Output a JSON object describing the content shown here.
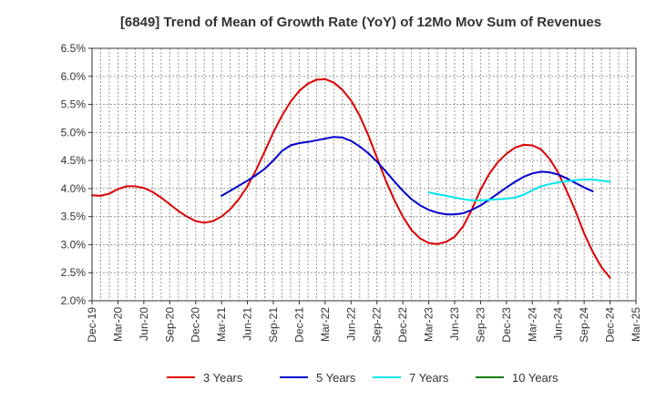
{
  "chart_data": {
    "type": "line",
    "title": "[6849]  Trend of Mean of Growth Rate (YoY) of 12Mo Mov Sum of Revenues",
    "xlabel": "",
    "ylabel": "",
    "y_tick_labels": [
      "2.0%",
      "2.5%",
      "3.0%",
      "3.5%",
      "4.0%",
      "4.5%",
      "5.0%",
      "5.5%",
      "6.0%",
      "6.5%"
    ],
    "x_tick_labels": [
      "Dec-19",
      "Mar-20",
      "Jun-20",
      "Sep-20",
      "Dec-20",
      "Mar-21",
      "Jun-21",
      "Sep-21",
      "Dec-21",
      "Mar-22",
      "Jun-22",
      "Sep-22",
      "Dec-22",
      "Mar-23",
      "Jun-23",
      "Sep-23",
      "Dec-23",
      "Mar-24",
      "Jun-24",
      "Sep-24",
      "Dec-24",
      "Mar-25"
    ],
    "x_start": "Dec-19",
    "x_num_months": 63,
    "ylim": [
      2.0,
      6.5
    ],
    "grid": true,
    "legend_position": "bottom",
    "series": [
      {
        "name": "3 Years",
        "color": "#dd0000",
        "start_month_index": 0,
        "values": [
          3.88,
          3.87,
          3.91,
          3.99,
          4.04,
          4.04,
          4.01,
          3.94,
          3.84,
          3.72,
          3.6,
          3.5,
          3.42,
          3.39,
          3.42,
          3.5,
          3.63,
          3.81,
          4.04,
          4.33,
          4.66,
          5.0,
          5.3,
          5.55,
          5.74,
          5.87,
          5.94,
          5.95,
          5.89,
          5.76,
          5.57,
          5.3,
          4.95,
          4.55,
          4.15,
          3.8,
          3.5,
          3.26,
          3.11,
          3.03,
          3.01,
          3.05,
          3.14,
          3.33,
          3.63,
          3.98,
          4.26,
          4.47,
          4.62,
          4.73,
          4.78,
          4.77,
          4.7,
          4.53,
          4.28,
          3.95,
          3.6,
          3.2,
          2.87,
          2.6,
          2.41
        ]
      },
      {
        "name": "5 Years",
        "color": "#0000cc",
        "start_month_index": 15,
        "values": [
          3.87,
          3.96,
          4.05,
          4.14,
          4.24,
          4.35,
          4.5,
          4.67,
          4.77,
          4.81,
          4.83,
          4.86,
          4.89,
          4.92,
          4.91,
          4.85,
          4.75,
          4.63,
          4.48,
          4.31,
          4.13,
          3.96,
          3.81,
          3.7,
          3.62,
          3.57,
          3.54,
          3.54,
          3.56,
          3.62,
          3.7,
          3.8,
          3.91,
          4.02,
          4.12,
          4.21,
          4.27,
          4.3,
          4.29,
          4.25,
          4.18,
          4.1,
          4.02,
          3.95
        ]
      },
      {
        "name": "7 Years",
        "color": "#00e5ee",
        "start_month_index": 39,
        "values": [
          3.93,
          3.9,
          3.87,
          3.84,
          3.81,
          3.79,
          3.79,
          3.8,
          3.81,
          3.82,
          3.84,
          3.89,
          3.97,
          4.04,
          4.08,
          4.11,
          4.13,
          4.15,
          4.16,
          4.16,
          4.14,
          4.12
        ]
      },
      {
        "name": "10 Years",
        "color": "#008000",
        "start_month_index": 0,
        "values": []
      }
    ]
  }
}
